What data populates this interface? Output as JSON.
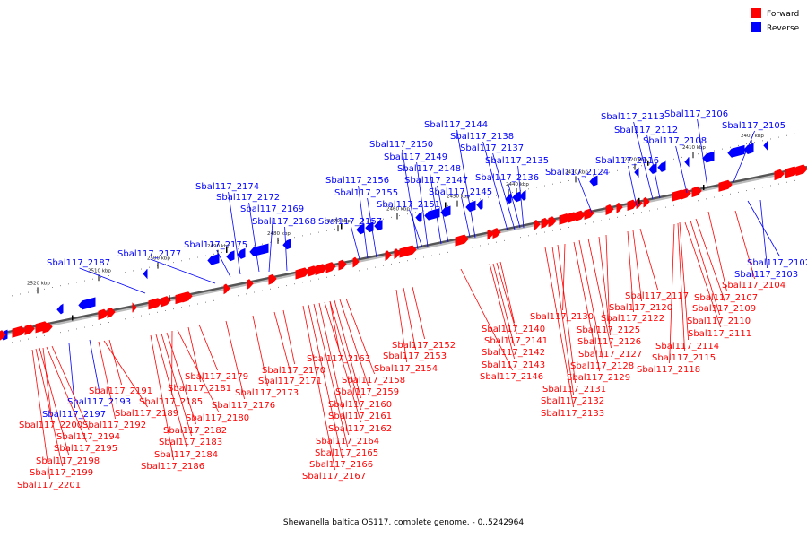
{
  "legend": {
    "forward": {
      "label": "Forward",
      "color": "#ff0000"
    },
    "reverse": {
      "label": "Reverse",
      "color": "#0000ff"
    }
  },
  "caption": "Shewanella baltica OS117, complete genome. - 0..5242964",
  "ticks": [
    "2520 kbp",
    "2510 kbp",
    "2500 kbp",
    "2490 kbp",
    "2480 kbp",
    "2470 kbp",
    "2460 kbp",
    "2450 kbp",
    "2440 kbp",
    "2430 kbp",
    "2420 kbp",
    "2410 kbp",
    "2400 kbp"
  ],
  "reverse_genes": [
    "Sbal117_2187",
    "Sbal117_2177",
    "Sbal117_2175",
    "Sbal117_2174",
    "Sbal117_2172",
    "Sbal117_2169",
    "Sbal117_2168",
    "Sbal117_2157",
    "Sbal117_2156",
    "Sbal117_2155",
    "Sbal117_2151",
    "Sbal117_2150",
    "Sbal117_2149",
    "Sbal117_2148",
    "Sbal117_2147",
    "Sbal117_2145",
    "Sbal117_2144",
    "Sbal117_2138",
    "Sbal117_2137",
    "Sbal117_2136",
    "Sbal117_2135",
    "Sbal117_2124",
    "Sbal117_2116",
    "Sbal117_2113",
    "Sbal117_2112",
    "Sbal117_2108",
    "Sbal117_2106",
    "Sbal117_2105",
    "Sbal117_2102",
    "Sbal117_2103",
    "Sbal117_2193",
    "Sbal117_2197"
  ],
  "forward_genes": [
    "Sbal117_2104",
    "Sbal117_2107",
    "Sbal117_2109",
    "Sbal117_2110",
    "Sbal117_2111",
    "Sbal117_2114",
    "Sbal117_2115",
    "Sbal117_2118",
    "Sbal117_2117",
    "Sbal117_2120",
    "Sbal117_2122",
    "Sbal117_2125",
    "Sbal117_2126",
    "Sbal117_2127",
    "Sbal117_2128",
    "Sbal117_2129",
    "Sbal117_2130",
    "Sbal117_2131",
    "Sbal117_2132",
    "Sbal117_2133",
    "Sbal117_2140",
    "Sbal117_2141",
    "Sbal117_2142",
    "Sbal117_2143",
    "Sbal117_2146",
    "Sbal117_2152",
    "Sbal117_2153",
    "Sbal117_2154",
    "Sbal117_2163",
    "Sbal117_2158",
    "Sbal117_2159",
    "Sbal117_2160",
    "Sbal117_2161",
    "Sbal117_2162",
    "Sbal117_2164",
    "Sbal117_2165",
    "Sbal117_2166",
    "Sbal117_2167",
    "Sbal117_2170",
    "Sbal117_2171",
    "Sbal117_2173",
    "Sbal117_2176",
    "Sbal117_2179",
    "Sbal117_2181",
    "Sbal117_2185",
    "Sbal117_2180",
    "Sbal117_2182",
    "Sbal117_2183",
    "Sbal117_2184",
    "Sbal117_2186",
    "Sbal117_2189",
    "Sbal117_2191",
    "Sbal117_2192",
    "Sbal117_2200",
    "Sbal117_2194",
    "Sbal117_2195",
    "Sbal117_2198",
    "Sbal117_2199",
    "Sbal117_2201"
  ]
}
